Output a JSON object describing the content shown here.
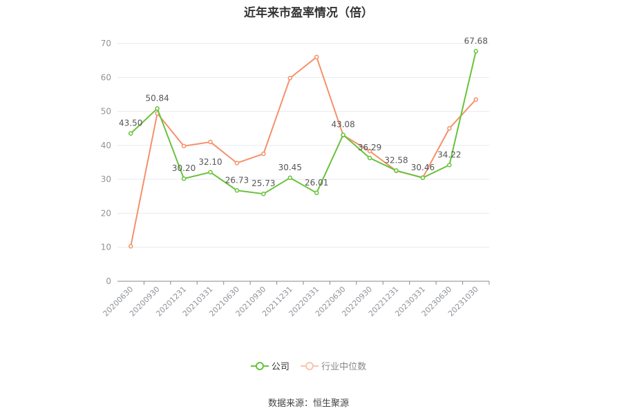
{
  "chart_data": {
    "type": "line",
    "title": "近年来市盈率情况（倍）",
    "categories": [
      "20200630",
      "20200930",
      "20201231",
      "20210331",
      "20210630",
      "20210930",
      "20211231",
      "20220331",
      "20220630",
      "20220930",
      "20221231",
      "20230331",
      "20230630",
      "20231030"
    ],
    "series": [
      {
        "name": "公司",
        "color": "#67c23a",
        "values": [
          43.5,
          50.84,
          30.2,
          32.1,
          26.73,
          25.73,
          30.45,
          26.01,
          43.08,
          36.29,
          32.58,
          30.46,
          34.22,
          67.68
        ],
        "labels": [
          "43.50",
          "50.84",
          "30.20",
          "32.10",
          "26.73",
          "25.73",
          "30.45",
          "26.01",
          "43.08",
          "36.29",
          "32.58",
          "30.46",
          "34.22",
          "67.68"
        ]
      },
      {
        "name": "行业中位数",
        "color": "#f5906a",
        "values": [
          10.3,
          49.4,
          39.8,
          41.0,
          34.8,
          37.5,
          59.8,
          66.0,
          43.0,
          38.3,
          32.5,
          30.5,
          45.0,
          53.5
        ]
      }
    ],
    "yticks": [
      "0",
      "10",
      "20",
      "30",
      "40",
      "50",
      "60",
      "70"
    ],
    "ylim": [
      0,
      70
    ],
    "grid": true,
    "legend": "bottom"
  },
  "legend": {
    "company": "公司",
    "industry": "行业中位数"
  },
  "source": "数据来源：恒生聚源"
}
